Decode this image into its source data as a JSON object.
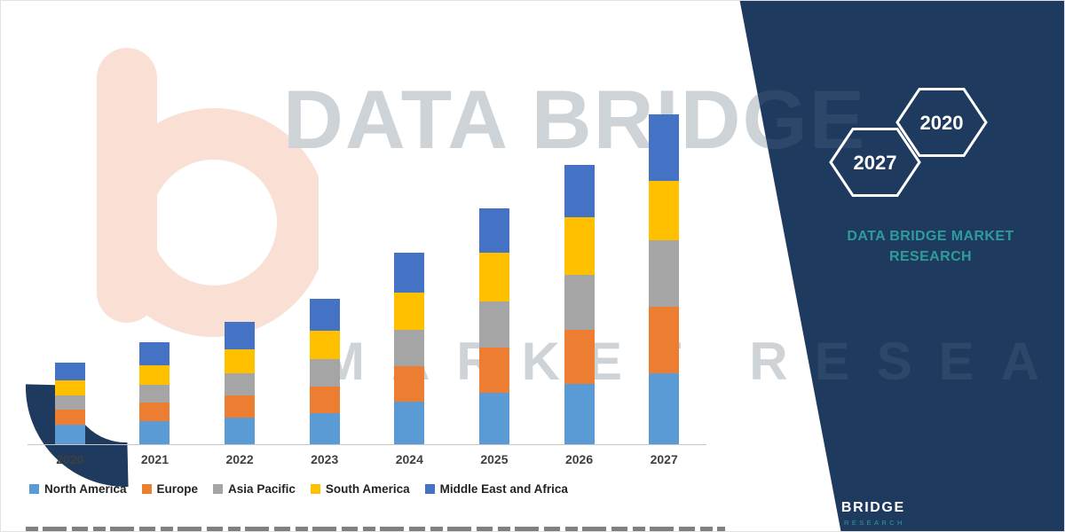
{
  "watermark": {
    "line1": "DATA BRIDGE",
    "line2": "MARKET RESEARCH"
  },
  "brand_panel": {
    "hexagon_years": [
      "2027",
      "2020"
    ],
    "name_line1": "DATA BRIDGE MARKET",
    "name_line2": "RESEARCH"
  },
  "footer_logo": {
    "text": "DATA BRIDGE",
    "tagline": "MARKET RESEARCH"
  },
  "colors": {
    "navy": "#1E3A5F",
    "teal": "#2E9C9B",
    "watermark_peach": "#FAE0D4",
    "axis_line": "#C6C6C6"
  },
  "chart_data": {
    "type": "bar",
    "stacked": true,
    "title": "",
    "xlabel": "",
    "ylabel": "",
    "axis_values_shown": false,
    "legend_position": "bottom",
    "categories": [
      "2020",
      "2021",
      "2022",
      "2023",
      "2024",
      "2025",
      "2026",
      "2027"
    ],
    "series": [
      {
        "name": "North America",
        "color": "#5B9BD5",
        "values": [
          22,
          26,
          30,
          35,
          48,
          58,
          68,
          80
        ]
      },
      {
        "name": "Europe",
        "color": "#ED7D31",
        "values": [
          17,
          21,
          25,
          30,
          40,
          50,
          60,
          74
        ]
      },
      {
        "name": "Asia Pacific",
        "color": "#A5A5A5",
        "values": [
          16,
          20,
          25,
          30,
          40,
          52,
          62,
          75
        ]
      },
      {
        "name": "South America",
        "color": "#FFC000",
        "values": [
          17,
          22,
          27,
          32,
          42,
          55,
          65,
          66
        ]
      },
      {
        "name": "Middle East and Africa",
        "color": "#4472C4",
        "values": [
          20,
          26,
          30,
          36,
          45,
          50,
          58,
          75
        ]
      }
    ],
    "totals_relative": [
      92,
      115,
      137,
      163,
      215,
      265,
      313,
      370
    ],
    "note": "No numeric axis shown in source image; values are relative units estimated from bar heights."
  }
}
